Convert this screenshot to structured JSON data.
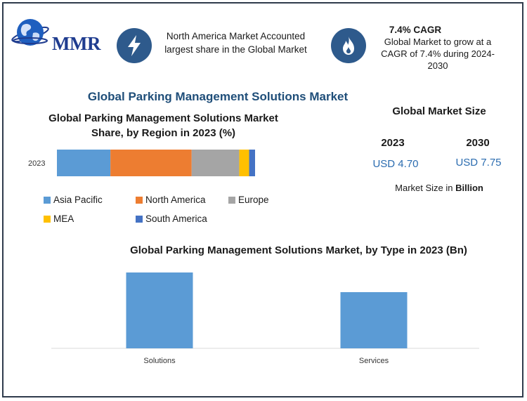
{
  "brand": {
    "logo_text": "MMR"
  },
  "callout_left": {
    "icon": "lightning-icon",
    "text": "North America Market Accounted largest share in the Global Market"
  },
  "callout_right": {
    "icon": "flame-icon",
    "title": "7.4% CAGR",
    "text": "Global Market to grow at a CAGR of 7.4% during 2024-2030"
  },
  "main_title": "Global Parking Management Solutions Market",
  "market_size": {
    "title": "Global Market Size",
    "years": [
      "2023",
      "2030"
    ],
    "values": [
      "USD 4.70",
      "USD 7.75"
    ],
    "unit_prefix": "Market Size in ",
    "unit_bold": "Billion"
  },
  "colors": {
    "asia": "#5b9bd5",
    "north_america": "#ed7d31",
    "europe": "#a5a5a5",
    "mea": "#ffc000",
    "south_america": "#4472c4",
    "accent": "#2e5a8c"
  },
  "chart_data": [
    {
      "type": "bar",
      "orientation": "horizontal-stacked",
      "title": "Global Parking Management Solutions Market Share, by Region in 2023 (%)",
      "categories": [
        "2023"
      ],
      "xlim": [
        0,
        100
      ],
      "series": [
        {
          "name": "Asia Pacific",
          "values": [
            27
          ],
          "color": "#5b9bd5"
        },
        {
          "name": "North America",
          "values": [
            41
          ],
          "color": "#ed7d31"
        },
        {
          "name": "Europe",
          "values": [
            24
          ],
          "color": "#a5a5a5"
        },
        {
          "name": "MEA",
          "values": [
            5
          ],
          "color": "#ffc000"
        },
        {
          "name": "South America",
          "values": [
            3
          ],
          "color": "#4472c4"
        }
      ],
      "legend": "bottom"
    },
    {
      "type": "bar",
      "title": "Global Parking Management Solutions Market, by Type in 2023 (Bn)",
      "categories": [
        "Solutions",
        "Services"
      ],
      "values": [
        2.7,
        2.0
      ],
      "ylim": [
        0,
        3.0
      ],
      "color": "#5b9bd5"
    }
  ]
}
